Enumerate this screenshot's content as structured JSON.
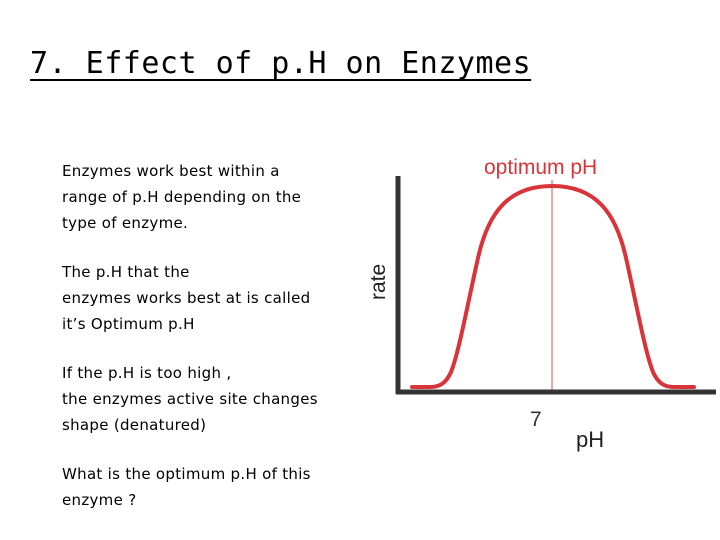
{
  "slide": {
    "title": "7. Effect of p.H on Enzymes"
  },
  "bullets": [
    "Enzymes work best within a\nrange of p.H depending on the\ntype of enzyme.",
    "The p.H that the\nenzymes works best at is called\nit’s Optimum p.H",
    "If the p.H is too high ,\nthe enzymes active site changes\nshape (denatured)",
    "What is the optimum p.H of this\nenzyme ?"
  ],
  "graph": {
    "optimum_label": "optimum pH",
    "y_axis_label": "rate",
    "x_tick_label": "7",
    "x_axis_label": "pH",
    "curve_color": "#d9343a",
    "optimum_line_color": "#f2a6a8",
    "label_color": "#d9343a"
  }
}
